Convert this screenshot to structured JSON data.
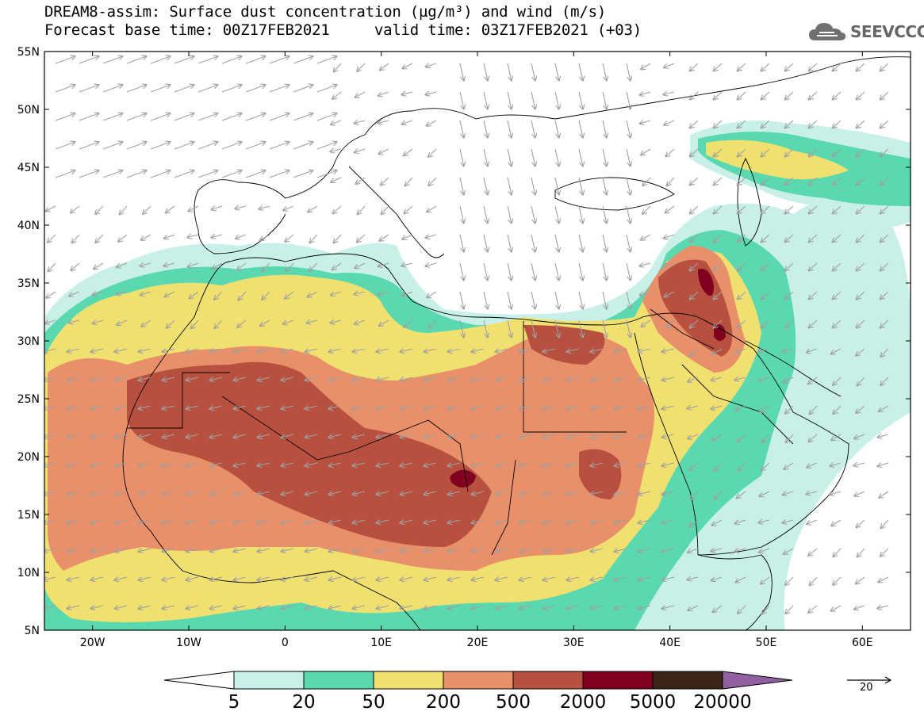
{
  "title": {
    "line1": "DREAM8-assim: Surface dust concentration (µg/m³) and wind (m/s)",
    "line2": "Forecast base time: 00Z17FEB2021     valid time: 03Z17FEB2021 (+03)"
  },
  "logo": {
    "text": "SEEVCCC",
    "icon": "cloud-icon"
  },
  "map": {
    "lat_labels": [
      "55N",
      "50N",
      "45N",
      "40N",
      "35N",
      "30N",
      "25N",
      "20N",
      "15N",
      "10N",
      "5N"
    ],
    "lon_labels": [
      "20W",
      "10W",
      "0",
      "10E",
      "20E",
      "30E",
      "40E",
      "50E",
      "60E"
    ],
    "lon_range": [
      -25,
      65
    ],
    "lat_range": [
      5,
      55
    ]
  },
  "colorbar": {
    "levels": [
      "5",
      "20",
      "50",
      "200",
      "500",
      "2000",
      "5000",
      "20000"
    ],
    "colors": [
      "#c8f0e8",
      "#5ad8b0",
      "#f0e070",
      "#e8906a",
      "#b85040",
      "#800020",
      "#3a2518",
      "#9060a0"
    ]
  },
  "reference_vector": {
    "label": "20"
  },
  "style": {
    "land_outline": "#000000",
    "wind_arrow": "#a0a0a0"
  }
}
